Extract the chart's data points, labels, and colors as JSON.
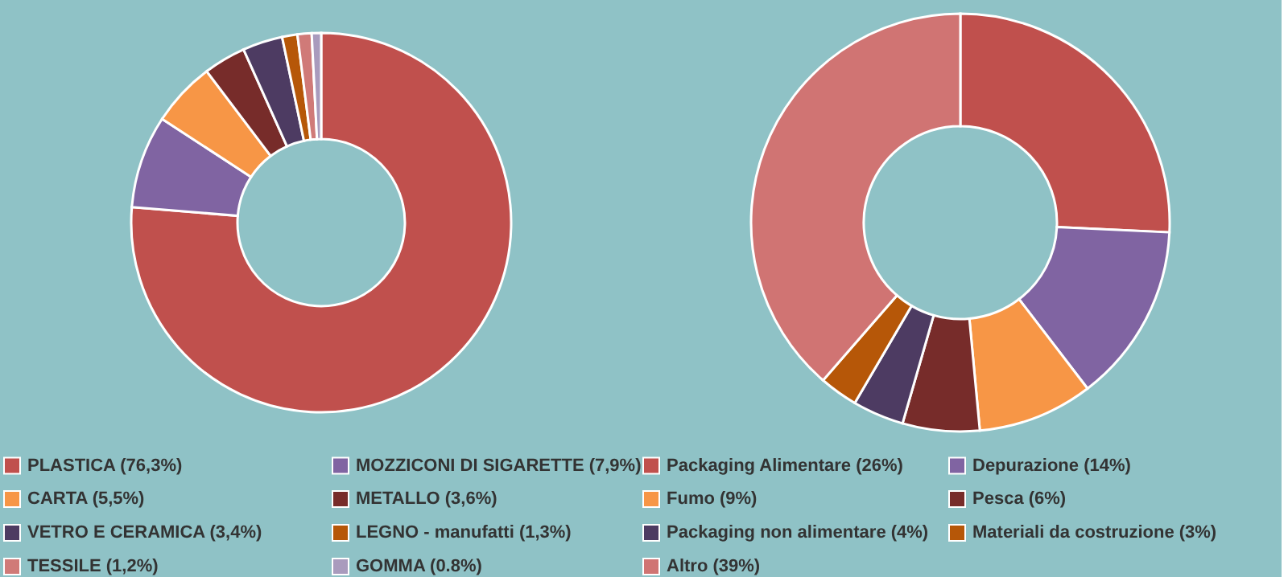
{
  "chart_data": [
    {
      "type": "donut",
      "legend": "bottom",
      "categories": [
        "PLASTICA (76,3%)",
        "MOZZICONI DI SIGARETTE (7,9%)",
        "CARTA (5,5%)",
        "METALLO (3,6%)",
        "VETRO E CERAMICA (3,4%)",
        "LEGNO - manufatti (1,3%)",
        "TESSILE (1,2%)",
        "GOMMA (0.8%)"
      ],
      "values": [
        76.3,
        7.9,
        5.5,
        3.6,
        3.4,
        1.3,
        1.2,
        0.8
      ],
      "colors": [
        "#c0504d",
        "#8064a2",
        "#f79646",
        "#772c2a",
        "#4d3b62",
        "#b65708",
        "#d07a78",
        "#a99bbd"
      ]
    },
    {
      "type": "donut",
      "legend": "bottom",
      "categories": [
        "Packaging Alimentare (26%)",
        "Depurazione (14%)",
        "Fumo (9%)",
        "Pesca (6%)",
        "Packaging non alimentare (4%)",
        "Materiali da costruzione (3%)",
        "Altro (39%)"
      ],
      "values": [
        26,
        14,
        9,
        6,
        4,
        3,
        39
      ],
      "colors": [
        "#c0504d",
        "#8064a2",
        "#f79646",
        "#772c2a",
        "#4d3b62",
        "#b65708",
        "#d07473"
      ]
    }
  ]
}
